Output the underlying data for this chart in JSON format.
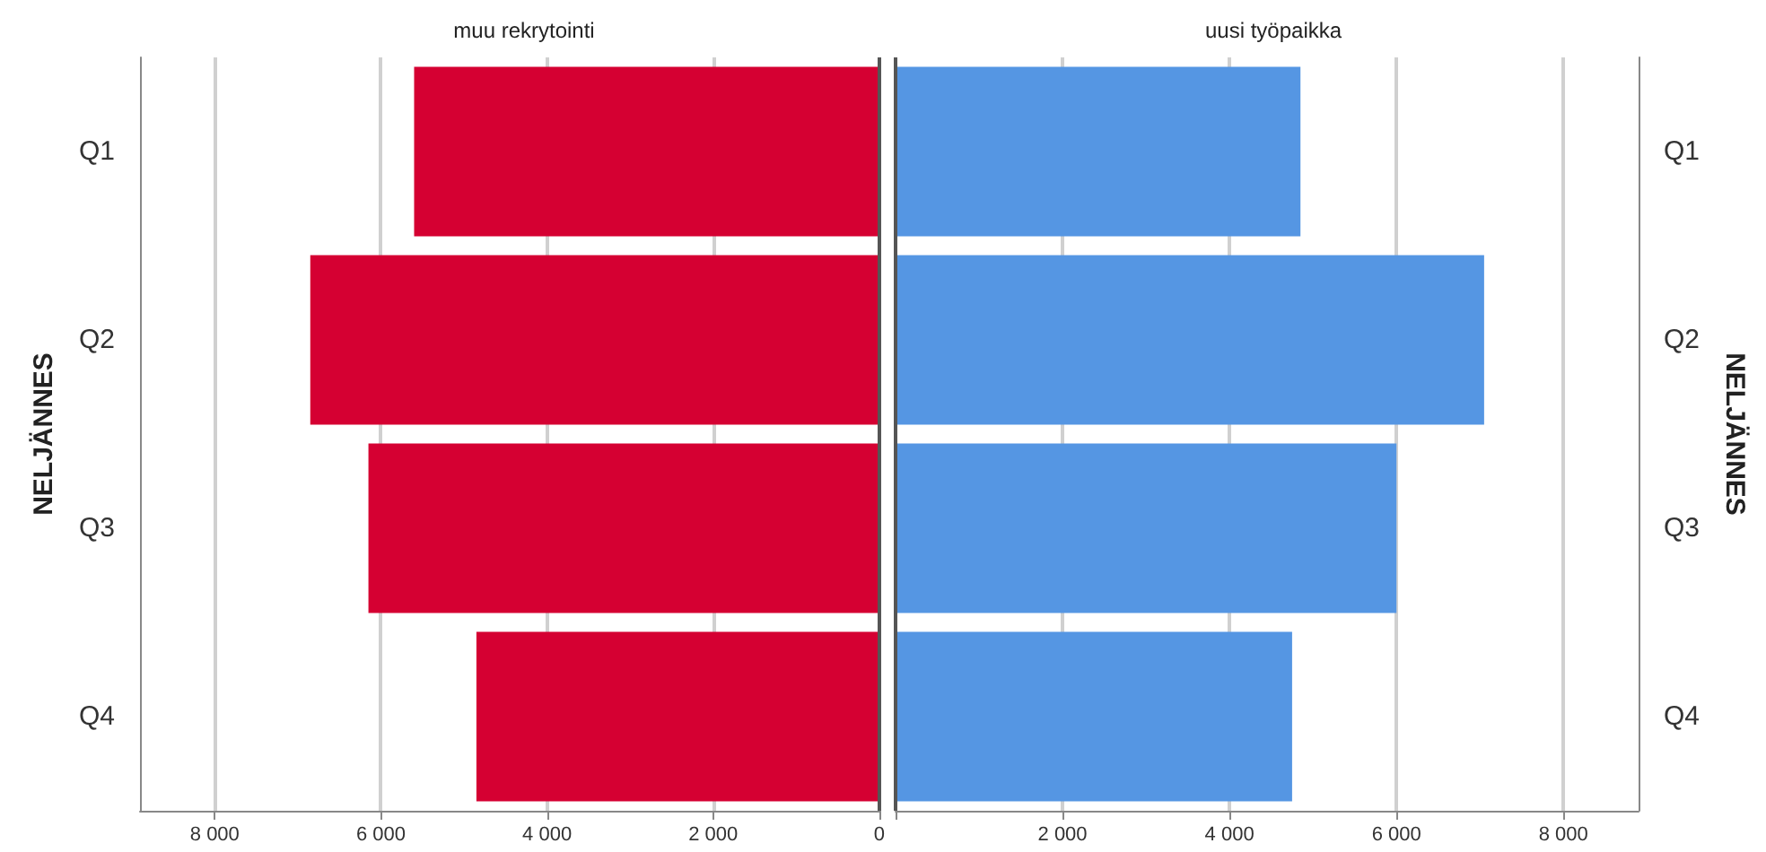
{
  "chart_data": [
    {
      "type": "bar",
      "orientation": "horizontal",
      "title": "muu rekrytointi",
      "ylabel": "NELJÄNNES",
      "categories": [
        "Q1",
        "Q2",
        "Q3",
        "Q4"
      ],
      "series": [
        {
          "color": "#d50032",
          "values": [
            5600,
            6850,
            6150,
            4850
          ]
        }
      ],
      "xlim": [
        8900,
        0
      ],
      "xticks": [
        {
          "value": 8000,
          "label": "8 000"
        },
        {
          "value": 6000,
          "label": "6 000"
        },
        {
          "value": 4000,
          "label": "4 000"
        },
        {
          "value": 2000,
          "label": "2 000"
        },
        0
      ],
      "grid": "x"
    },
    {
      "type": "bar",
      "orientation": "horizontal",
      "title": "uusi työpaikka",
      "ylabel": "NELJÄNNES",
      "categories": [
        "Q1",
        "Q2",
        "Q3",
        "Q4"
      ],
      "series": [
        {
          "color": "#5596e3",
          "values": [
            4850,
            7050,
            6000,
            4750
          ]
        }
      ],
      "xlim": [
        0,
        8900
      ],
      "xticks": [
        {
          "value": 0,
          "label": null
        },
        {
          "value": 2000,
          "label": "2 000"
        },
        {
          "value": 4000,
          "label": "4 000"
        },
        {
          "value": 6000,
          "label": "6 000"
        },
        {
          "value": 8000,
          "label": "8 000"
        }
      ],
      "grid": "x"
    }
  ]
}
